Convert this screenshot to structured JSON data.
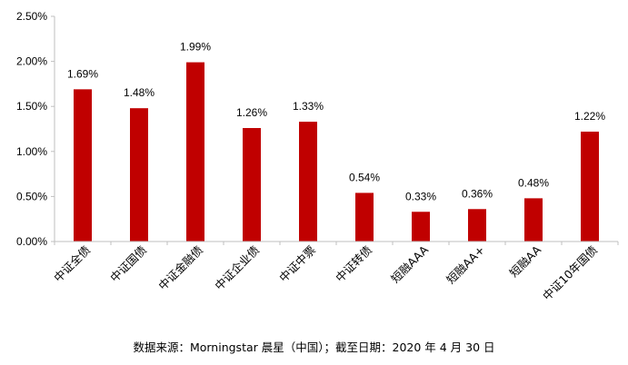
{
  "chart_data": {
    "type": "bar",
    "categories": [
      "中证全债",
      "中证国债",
      "中证金融债",
      "中证企业债",
      "中证中票",
      "中证转债",
      "短融AAA",
      "短融AA+",
      "短融AA",
      "中证10年国债"
    ],
    "values": [
      1.69,
      1.48,
      1.99,
      1.26,
      1.33,
      0.54,
      0.33,
      0.36,
      0.48,
      1.22
    ],
    "value_labels": [
      "1.69%",
      "1.48%",
      "1.99%",
      "1.26%",
      "1.33%",
      "0.54%",
      "0.33%",
      "0.36%",
      "0.48%",
      "1.22%"
    ],
    "y_ticks": [
      0.0,
      0.5,
      1.0,
      1.5,
      2.0,
      2.5
    ],
    "y_tick_labels": [
      "0.00%",
      "0.50%",
      "1.00%",
      "1.50%",
      "2.00%",
      "2.50%"
    ],
    "ylim": [
      0,
      2.5
    ],
    "title": "",
    "xlabel": "",
    "ylabel": "",
    "grid": false,
    "legend": "none",
    "bar_color": "#c00000",
    "axis_color": "#bfbfbf"
  },
  "source_note": "数据来源：Morningstar 晨星（中国）；截至日期：2020 年 4 月 30 日"
}
